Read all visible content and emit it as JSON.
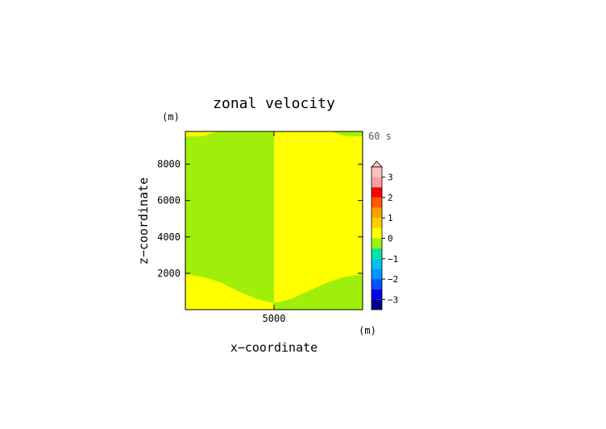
{
  "chart_data": {
    "type": "heatmap",
    "title": "zonal velocity",
    "time_label": "60 s",
    "xlabel": "x−coordinate",
    "ylabel": "z−coordinate",
    "x_unit": "(m)",
    "y_unit": "(m)",
    "xlim": [
      0,
      10000
    ],
    "ylim": [
      0,
      9800
    ],
    "x_ticks": [
      {
        "value": 5000,
        "label": "5000"
      }
    ],
    "y_ticks": [
      {
        "value": 2000,
        "label": "2000"
      },
      {
        "value": 4000,
        "label": "4000"
      },
      {
        "value": 6000,
        "label": "6000"
      },
      {
        "value": 8000,
        "label": "8000"
      }
    ],
    "regions": [
      {
        "level": 0,
        "color": "#a0ef0a",
        "description": "left half, x < 5000, above the lower boundary"
      },
      {
        "level": 0.5,
        "color": "#ffff00",
        "description": "left half top strip and bottom region"
      },
      {
        "level": 0.5,
        "color": "#ffff00",
        "description": "right half, x > 5000, above the lower boundary"
      },
      {
        "level": 0,
        "color": "#a0ef0a",
        "description": "right half top corner and bottom region"
      }
    ],
    "boundaries": {
      "left_lower_z": [
        [
          0,
          1950
        ],
        [
          1000,
          1800
        ],
        [
          2000,
          1500
        ],
        [
          3000,
          1000
        ],
        [
          4000,
          600
        ],
        [
          4700,
          420
        ],
        [
          5000,
          400
        ]
      ],
      "left_upper_z": [
        [
          0,
          9530
        ],
        [
          1000,
          9550
        ],
        [
          1500,
          9700
        ],
        [
          1800,
          9800
        ]
      ],
      "right_lower_z": [
        [
          5000,
          400
        ],
        [
          5300,
          420
        ],
        [
          6000,
          600
        ],
        [
          7000,
          1050
        ],
        [
          8000,
          1500
        ],
        [
          9000,
          1800
        ],
        [
          10000,
          1950
        ]
      ],
      "right_upper_z": [
        [
          8200,
          9800
        ],
        [
          8500,
          9700
        ],
        [
          9000,
          9550
        ],
        [
          10000,
          9530
        ]
      ]
    },
    "colorbar": {
      "tick_labels": [
        "3",
        "2",
        "1",
        "0",
        "−1",
        "−2",
        "−3"
      ],
      "tick_values": [
        3,
        2,
        1,
        0,
        -1,
        -2,
        -3
      ],
      "levels": [
        {
          "from": 3.5,
          "to": 3.0,
          "color": "#ffc0c0"
        },
        {
          "from": 3.0,
          "to": 2.5,
          "color": "#ffa0a0"
        },
        {
          "from": 2.5,
          "to": 2.0,
          "color": "#ff0000"
        },
        {
          "from": 2.0,
          "to": 1.5,
          "color": "#ff5a00"
        },
        {
          "from": 1.5,
          "to": 1.0,
          "color": "#ffa000"
        },
        {
          "from": 1.0,
          "to": 0.5,
          "color": "#ffd000"
        },
        {
          "from": 0.5,
          "to": 0.0,
          "color": "#ffff00"
        },
        {
          "from": 0.0,
          "to": -0.5,
          "color": "#a0ef0a"
        },
        {
          "from": -0.5,
          "to": -1.0,
          "color": "#00e6a0"
        },
        {
          "from": -1.0,
          "to": -1.5,
          "color": "#00c0f0"
        },
        {
          "from": -1.5,
          "to": -2.0,
          "color": "#0096ff"
        },
        {
          "from": -2.0,
          "to": -2.5,
          "color": "#0050ff"
        },
        {
          "from": -2.5,
          "to": -3.0,
          "color": "#0000e6"
        },
        {
          "from": -3.0,
          "to": -3.5,
          "color": "#00008b"
        }
      ]
    }
  }
}
